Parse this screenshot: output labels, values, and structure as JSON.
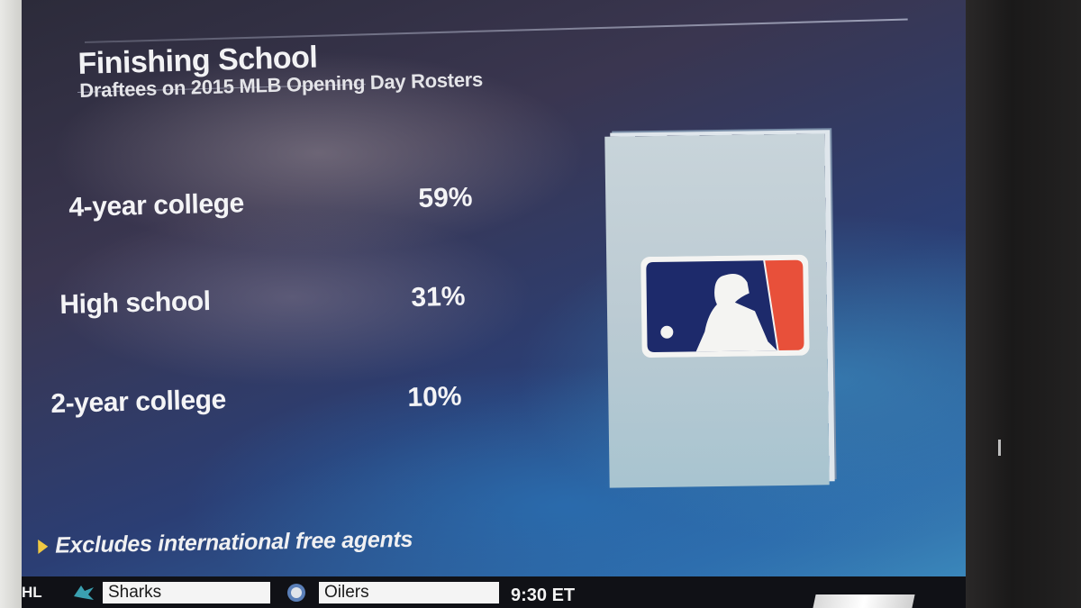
{
  "graphic": {
    "title": "Finishing School",
    "subtitle": "Draftees on 2015 MLB Opening Day Rosters",
    "rows": [
      {
        "label": "4-year college",
        "value": "59%"
      },
      {
        "label": "High school",
        "value": "31%"
      },
      {
        "label": "2-year college",
        "value": "10%"
      }
    ],
    "footnote": "Excludes international free agents",
    "logo_icon": "mlb-logo-icon",
    "colors": {
      "logo_blue": "#1d2a6b",
      "logo_red": "#e8503a",
      "footnote_arrow": "#f0c842"
    }
  },
  "ticker": {
    "league": "HL",
    "team1": {
      "name": "Sharks",
      "icon": "sharks-logo-icon"
    },
    "team2": {
      "name": "Oilers",
      "icon": "oilers-logo-icon"
    },
    "time": "9:30 ET"
  }
}
